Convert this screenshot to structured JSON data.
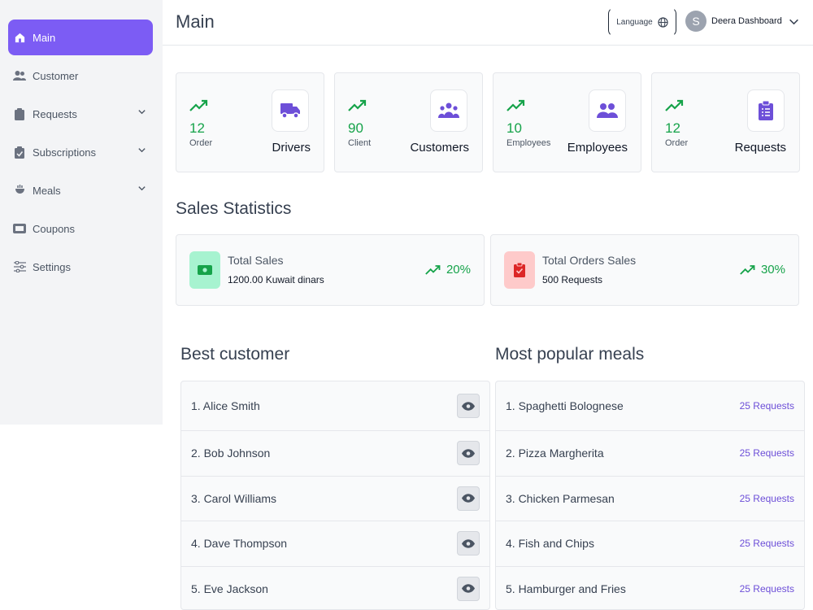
{
  "sidebar": {
    "items": [
      {
        "label": "Main",
        "icon": "home-icon",
        "active": true
      },
      {
        "label": "Customer",
        "icon": "users-icon"
      },
      {
        "label": "Requests",
        "icon": "clipboard-icon",
        "expandable": true
      },
      {
        "label": "Subscriptions",
        "icon": "clipboard-check-icon",
        "expandable": true
      },
      {
        "label": "Meals",
        "icon": "meal-icon",
        "expandable": true
      },
      {
        "label": "Coupons",
        "icon": "ticket-icon"
      },
      {
        "label": "Settings",
        "icon": "sliders-icon"
      }
    ]
  },
  "header": {
    "title": "Main",
    "language_label": "Language",
    "user_initial": "S",
    "user_name": "Deera Dashboard"
  },
  "stats": [
    {
      "value": "12",
      "unit": "Order",
      "label": "Drivers",
      "icon": "truck-icon"
    },
    {
      "value": "90",
      "unit": "Client",
      "label": "Customers",
      "icon": "group-icon"
    },
    {
      "value": "10",
      "unit": "Employees",
      "label": "Employees",
      "icon": "users-icon"
    },
    {
      "value": "12",
      "unit": "Order",
      "label": "Requests",
      "icon": "clipboard-list-icon"
    }
  ],
  "sales": {
    "title": "Sales Statistics",
    "cards": [
      {
        "title": "Total Sales",
        "value": "1200.00 Kuwait dinars",
        "percent": "20%",
        "icon": "money-icon",
        "color": "#a7f3d0"
      },
      {
        "title": "Total Orders Sales",
        "value": "500 Requests",
        "percent": "30%",
        "icon": "clipboard-check-icon",
        "color": "#fecaca"
      }
    ]
  },
  "best_customer": {
    "title": "Best customer",
    "rows": [
      "1. Alice Smith",
      "2. Bob Johnson",
      "3. Carol Williams",
      "4. Dave Thompson",
      "5. Eve Jackson"
    ]
  },
  "popular_meals": {
    "title": "Most popular meals",
    "rows": [
      {
        "name": "1. Spaghetti Bolognese",
        "count": "25 Requests"
      },
      {
        "name": "2. Pizza Margherita",
        "count": "25 Requests"
      },
      {
        "name": "3. Chicken Parmesan",
        "count": "25 Requests"
      },
      {
        "name": "4. Fish and Chips",
        "count": "25 Requests"
      },
      {
        "name": "5. Hamburger and Fries",
        "count": "25 Requests"
      }
    ]
  },
  "colors": {
    "accent": "#7c5cf4",
    "success": "#16a34a",
    "link": "#6d4fd8"
  }
}
